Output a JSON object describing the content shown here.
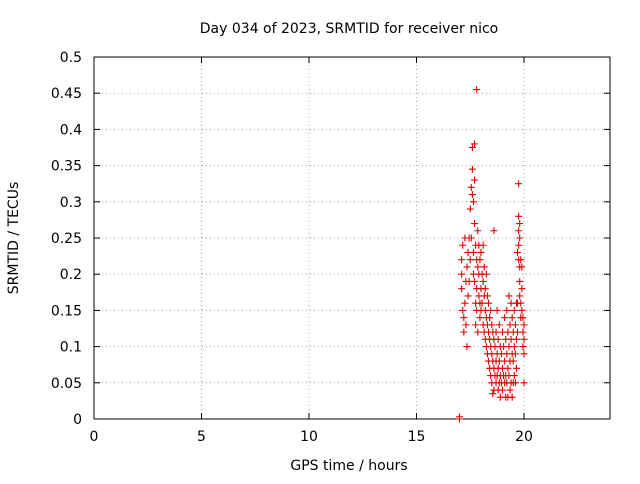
{
  "chart_data": {
    "type": "scatter",
    "title": "Day 034 of 2023, SRMTID for receiver nico",
    "xlabel": "GPS time / hours",
    "ylabel": "SRMTID / TECUs",
    "xlim": [
      0,
      24
    ],
    "ylim": [
      0,
      0.5
    ],
    "x_ticks": [
      0,
      5,
      10,
      15,
      20
    ],
    "x_tick_labels": [
      "0",
      "5",
      "10",
      "15",
      "20"
    ],
    "y_ticks": [
      0,
      0.05,
      0.1,
      0.15,
      0.2,
      0.25,
      0.3,
      0.35,
      0.4,
      0.45,
      0.5
    ],
    "y_tick_labels": [
      "0",
      "0.05",
      "0.1",
      "0.15",
      "0.2",
      "0.25",
      "0.3",
      "0.35",
      "0.4",
      "0.45",
      "0.5"
    ],
    "grid": true,
    "marker": "+",
    "color": "#e00000",
    "series": [
      {
        "points": [
          [
            17.0,
            0.0
          ],
          [
            17.0,
            0.003
          ],
          [
            17.1,
            0.22
          ],
          [
            17.1,
            0.2
          ],
          [
            17.1,
            0.18
          ],
          [
            17.15,
            0.24
          ],
          [
            17.15,
            0.15
          ],
          [
            17.2,
            0.14
          ],
          [
            17.2,
            0.12
          ],
          [
            17.25,
            0.25
          ],
          [
            17.25,
            0.16
          ],
          [
            17.3,
            0.19
          ],
          [
            17.3,
            0.13
          ],
          [
            17.35,
            0.21
          ],
          [
            17.35,
            0.1
          ],
          [
            17.4,
            0.23
          ],
          [
            17.4,
            0.17
          ],
          [
            17.45,
            0.25
          ],
          [
            17.45,
            0.19
          ],
          [
            17.5,
            0.29
          ],
          [
            17.5,
            0.22
          ],
          [
            17.55,
            0.32
          ],
          [
            17.55,
            0.25
          ],
          [
            17.6,
            0.345
          ],
          [
            17.6,
            0.375
          ],
          [
            17.6,
            0.31
          ],
          [
            17.65,
            0.3
          ],
          [
            17.65,
            0.23
          ],
          [
            17.65,
            0.2
          ],
          [
            17.7,
            0.38
          ],
          [
            17.7,
            0.33
          ],
          [
            17.7,
            0.27
          ],
          [
            17.7,
            0.19
          ],
          [
            17.75,
            0.24
          ],
          [
            17.75,
            0.16
          ],
          [
            17.75,
            0.13
          ],
          [
            17.8,
            0.455
          ],
          [
            17.8,
            0.22
          ],
          [
            17.8,
            0.18
          ],
          [
            17.8,
            0.15
          ],
          [
            17.85,
            0.26
          ],
          [
            17.85,
            0.21
          ],
          [
            17.85,
            0.12
          ],
          [
            17.9,
            0.24
          ],
          [
            17.9,
            0.2
          ],
          [
            17.9,
            0.17
          ],
          [
            17.95,
            0.22
          ],
          [
            17.95,
            0.16
          ],
          [
            17.95,
            0.14
          ],
          [
            18.0,
            0.23
          ],
          [
            18.0,
            0.18
          ],
          [
            18.0,
            0.15
          ],
          [
            18.05,
            0.2
          ],
          [
            18.05,
            0.16
          ],
          [
            18.1,
            0.24
          ],
          [
            18.1,
            0.19
          ],
          [
            18.1,
            0.13
          ],
          [
            18.15,
            0.21
          ],
          [
            18.15,
            0.17
          ],
          [
            18.15,
            0.12
          ],
          [
            18.2,
            0.18
          ],
          [
            18.2,
            0.15
          ],
          [
            18.2,
            0.11
          ],
          [
            18.25,
            0.2
          ],
          [
            18.25,
            0.14
          ],
          [
            18.25,
            0.1
          ],
          [
            18.3,
            0.17
          ],
          [
            18.3,
            0.13
          ],
          [
            18.3,
            0.09
          ],
          [
            18.35,
            0.16
          ],
          [
            18.35,
            0.12
          ],
          [
            18.35,
            0.08
          ],
          [
            18.4,
            0.14
          ],
          [
            18.4,
            0.11
          ],
          [
            18.4,
            0.07
          ],
          [
            18.45,
            0.15
          ],
          [
            18.45,
            0.1
          ],
          [
            18.45,
            0.06
          ],
          [
            18.5,
            0.13
          ],
          [
            18.5,
            0.09
          ],
          [
            18.5,
            0.05
          ],
          [
            18.55,
            0.12
          ],
          [
            18.55,
            0.08
          ],
          [
            18.55,
            0.035
          ],
          [
            18.6,
            0.26
          ],
          [
            18.6,
            0.11
          ],
          [
            18.6,
            0.07
          ],
          [
            18.6,
            0.04
          ],
          [
            18.65,
            0.1
          ],
          [
            18.65,
            0.06
          ],
          [
            18.7,
            0.12
          ],
          [
            18.7,
            0.08
          ],
          [
            18.7,
            0.05
          ],
          [
            18.75,
            0.15
          ],
          [
            18.75,
            0.09
          ],
          [
            18.75,
            0.06
          ],
          [
            18.8,
            0.11
          ],
          [
            18.8,
            0.07
          ],
          [
            18.8,
            0.04
          ],
          [
            18.85,
            0.13
          ],
          [
            18.85,
            0.08
          ],
          [
            18.85,
            0.05
          ],
          [
            18.9,
            0.1
          ],
          [
            18.9,
            0.06
          ],
          [
            18.9,
            0.03
          ],
          [
            18.95,
            0.09
          ],
          [
            18.95,
            0.05
          ],
          [
            19.0,
            0.12
          ],
          [
            19.0,
            0.07
          ],
          [
            19.0,
            0.04
          ],
          [
            19.05,
            0.1
          ],
          [
            19.05,
            0.06
          ],
          [
            19.1,
            0.14
          ],
          [
            19.1,
            0.08
          ],
          [
            19.1,
            0.05
          ],
          [
            19.15,
            0.11
          ],
          [
            19.15,
            0.06
          ],
          [
            19.15,
            0.03
          ],
          [
            19.2,
            0.15
          ],
          [
            19.2,
            0.09
          ],
          [
            19.2,
            0.05
          ],
          [
            19.25,
            0.12
          ],
          [
            19.25,
            0.07
          ],
          [
            19.25,
            0.03
          ],
          [
            19.3,
            0.17
          ],
          [
            19.3,
            0.1
          ],
          [
            19.3,
            0.06
          ],
          [
            19.35,
            0.13
          ],
          [
            19.35,
            0.08
          ],
          [
            19.35,
            0.04
          ],
          [
            19.4,
            0.16
          ],
          [
            19.4,
            0.11
          ],
          [
            19.4,
            0.05
          ],
          [
            19.45,
            0.14
          ],
          [
            19.45,
            0.09
          ],
          [
            19.45,
            0.03
          ],
          [
            19.5,
            0.12
          ],
          [
            19.5,
            0.08
          ],
          [
            19.5,
            0.05
          ],
          [
            19.55,
            0.15
          ],
          [
            19.55,
            0.1
          ],
          [
            19.55,
            0.06
          ],
          [
            19.6,
            0.13
          ],
          [
            19.6,
            0.09
          ],
          [
            19.6,
            0.05
          ],
          [
            19.65,
            0.16
          ],
          [
            19.65,
            0.11
          ],
          [
            19.65,
            0.07
          ],
          [
            19.7,
            0.23
          ],
          [
            19.7,
            0.16
          ],
          [
            19.7,
            0.12
          ],
          [
            19.75,
            0.325
          ],
          [
            19.75,
            0.28
          ],
          [
            19.75,
            0.26
          ],
          [
            19.75,
            0.24
          ],
          [
            19.75,
            0.22
          ],
          [
            19.8,
            0.27
          ],
          [
            19.8,
            0.25
          ],
          [
            19.8,
            0.21
          ],
          [
            19.8,
            0.19
          ],
          [
            19.8,
            0.17
          ],
          [
            19.85,
            0.22
          ],
          [
            19.85,
            0.16
          ],
          [
            19.85,
            0.14
          ],
          [
            19.9,
            0.21
          ],
          [
            19.9,
            0.18
          ],
          [
            19.9,
            0.15
          ],
          [
            19.95,
            0.14
          ],
          [
            19.95,
            0.12
          ],
          [
            19.95,
            0.1
          ],
          [
            20.0,
            0.13
          ],
          [
            20.0,
            0.11
          ],
          [
            20.0,
            0.09
          ],
          [
            20.0,
            0.05
          ]
        ]
      }
    ]
  }
}
